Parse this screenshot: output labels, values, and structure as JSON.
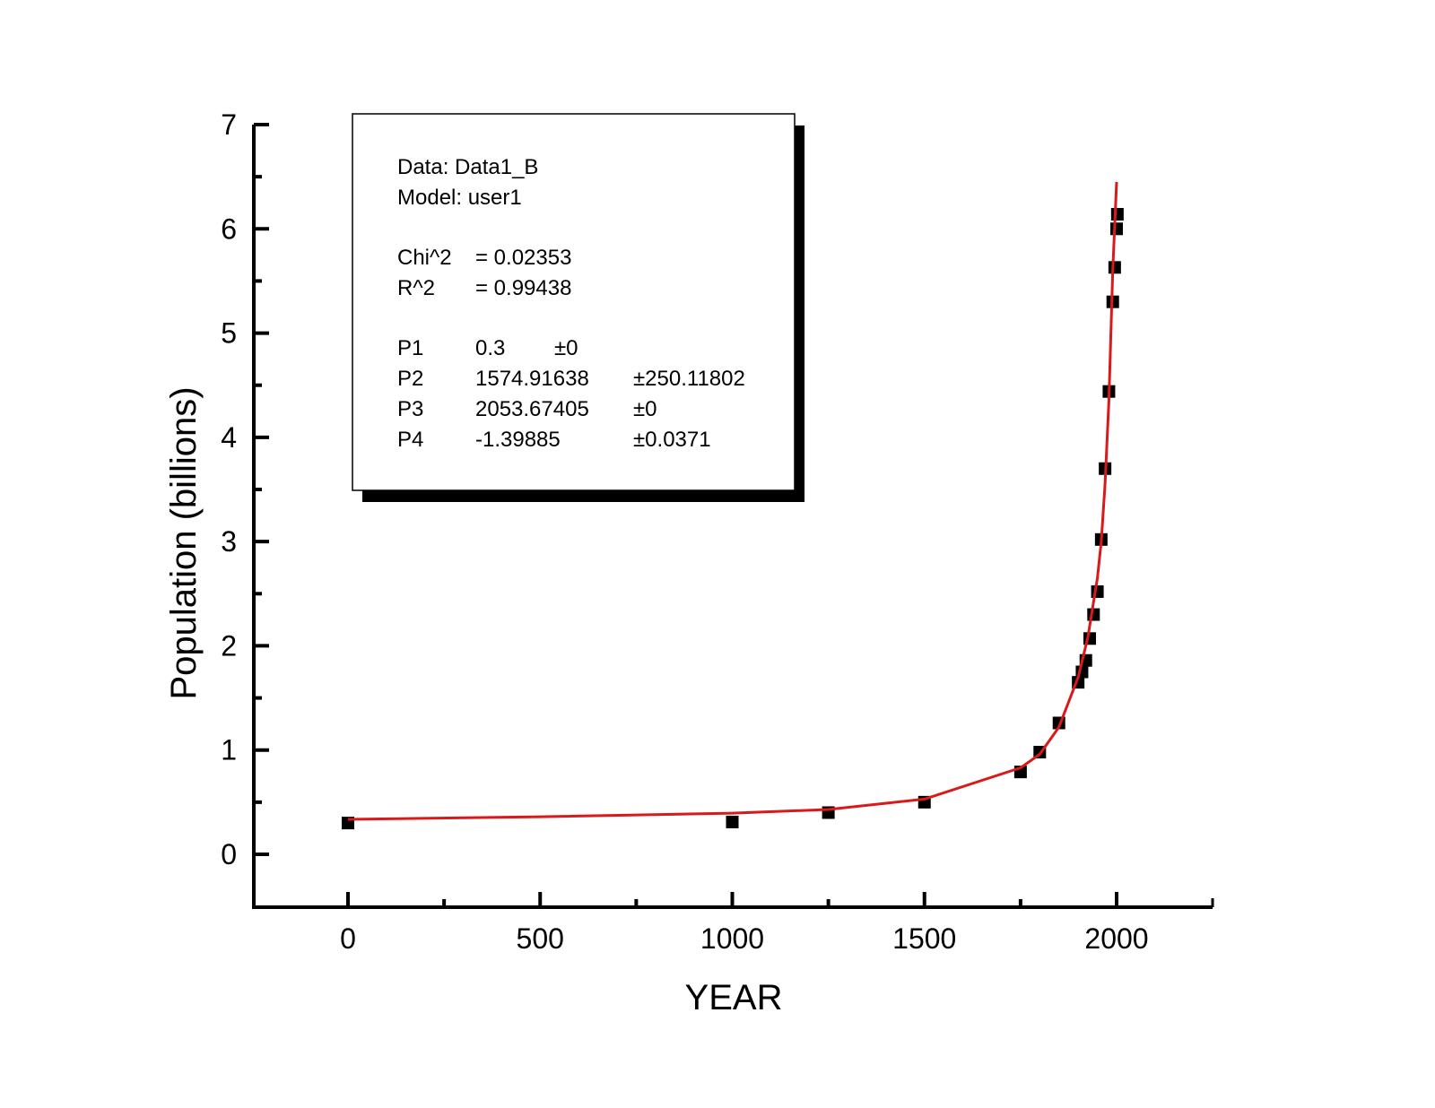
{
  "chart_data": {
    "type": "scatter",
    "title": "",
    "xlabel": "YEAR",
    "ylabel": "Population (billions)",
    "xlim": [
      -250,
      2250
    ],
    "ylim": [
      -0.5,
      7
    ],
    "x_ticks": [
      0,
      500,
      1000,
      1500,
      2000
    ],
    "y_ticks": [
      0,
      1,
      2,
      3,
      4,
      5,
      6,
      7
    ],
    "grid": false,
    "series": [
      {
        "type": "scatter",
        "marker": "square",
        "color": "#000000",
        "points": [
          [
            0,
            0.3
          ],
          [
            1000,
            0.31
          ],
          [
            1250,
            0.4
          ],
          [
            1500,
            0.5
          ],
          [
            1750,
            0.79
          ],
          [
            1800,
            0.98
          ],
          [
            1850,
            1.26
          ],
          [
            1900,
            1.65
          ],
          [
            1910,
            1.75
          ],
          [
            1920,
            1.86
          ],
          [
            1930,
            2.07
          ],
          [
            1940,
            2.3
          ],
          [
            1950,
            2.52
          ],
          [
            1960,
            3.02
          ],
          [
            1970,
            3.7
          ],
          [
            1980,
            4.44
          ],
          [
            1990,
            5.3
          ],
          [
            1995,
            5.63
          ],
          [
            2000,
            6.0
          ],
          [
            2002,
            6.14
          ]
        ]
      },
      {
        "type": "line",
        "color": "#d91a1a",
        "fit": "user1",
        "points": [
          [
            0,
            0.335
          ],
          [
            500,
            0.36
          ],
          [
            1000,
            0.395
          ],
          [
            1250,
            0.43
          ],
          [
            1500,
            0.53
          ],
          [
            1750,
            0.83
          ],
          [
            1800,
            0.96
          ],
          [
            1850,
            1.22
          ],
          [
            1900,
            1.7
          ],
          [
            1925,
            2.08
          ],
          [
            1950,
            2.65
          ],
          [
            1960,
            3.0
          ],
          [
            1970,
            3.55
          ],
          [
            1980,
            4.35
          ],
          [
            1990,
            5.6
          ],
          [
            2000,
            6.45
          ]
        ]
      }
    ],
    "info_box": {
      "data_line": "Data: Data1_B",
      "model_line": "Model: user1",
      "stats": [
        {
          "name": "Chi^2",
          "value": "=  0.02353"
        },
        {
          "name": "R^2",
          "value": "=  0.99438"
        }
      ],
      "params": [
        {
          "name": "P1",
          "value": "0.3",
          "error": "±0"
        },
        {
          "name": "P2",
          "value": "1574.91638",
          "error": "±250.11802"
        },
        {
          "name": "P3",
          "value": "2053.67405",
          "error": "±0"
        },
        {
          "name": "P4",
          "value": "-1.39885",
          "error": "±0.0371"
        }
      ]
    }
  }
}
